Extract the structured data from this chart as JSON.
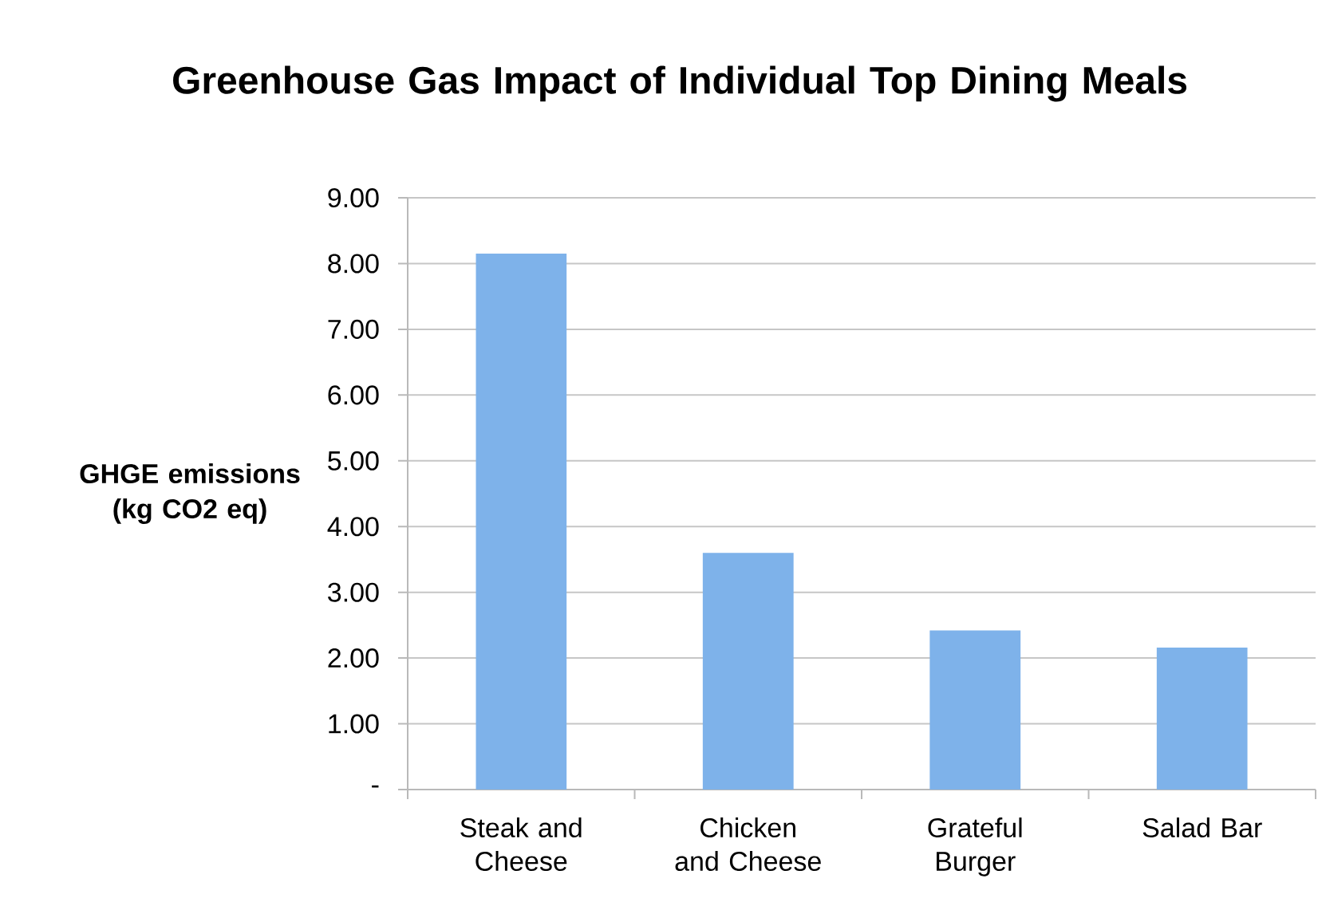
{
  "chart_data": {
    "type": "bar",
    "title": "Greenhouse Gas Impact of Individual Top Dining Meals",
    "ylabel": "GHGE emissions (kg CO2 eq)",
    "categories": [
      "Steak and Cheese",
      "Chicken and Cheese",
      "Grateful Burger",
      "Salad Bar"
    ],
    "values": [
      8.15,
      3.6,
      2.42,
      2.16
    ],
    "color": "#7eb2ea",
    "ylim": [
      0,
      9
    ],
    "yticks": [
      {
        "value": 0,
        "label": "-"
      },
      {
        "value": 1,
        "label": "1.00"
      },
      {
        "value": 2,
        "label": "2.00"
      },
      {
        "value": 3,
        "label": "3.00"
      },
      {
        "value": 4,
        "label": "4.00"
      },
      {
        "value": 5,
        "label": "5.00"
      },
      {
        "value": 6,
        "label": "6.00"
      },
      {
        "value": 7,
        "label": "7.00"
      },
      {
        "value": 8,
        "label": "8.00"
      },
      {
        "value": 9,
        "label": "9.00"
      }
    ],
    "grid": "y"
  }
}
